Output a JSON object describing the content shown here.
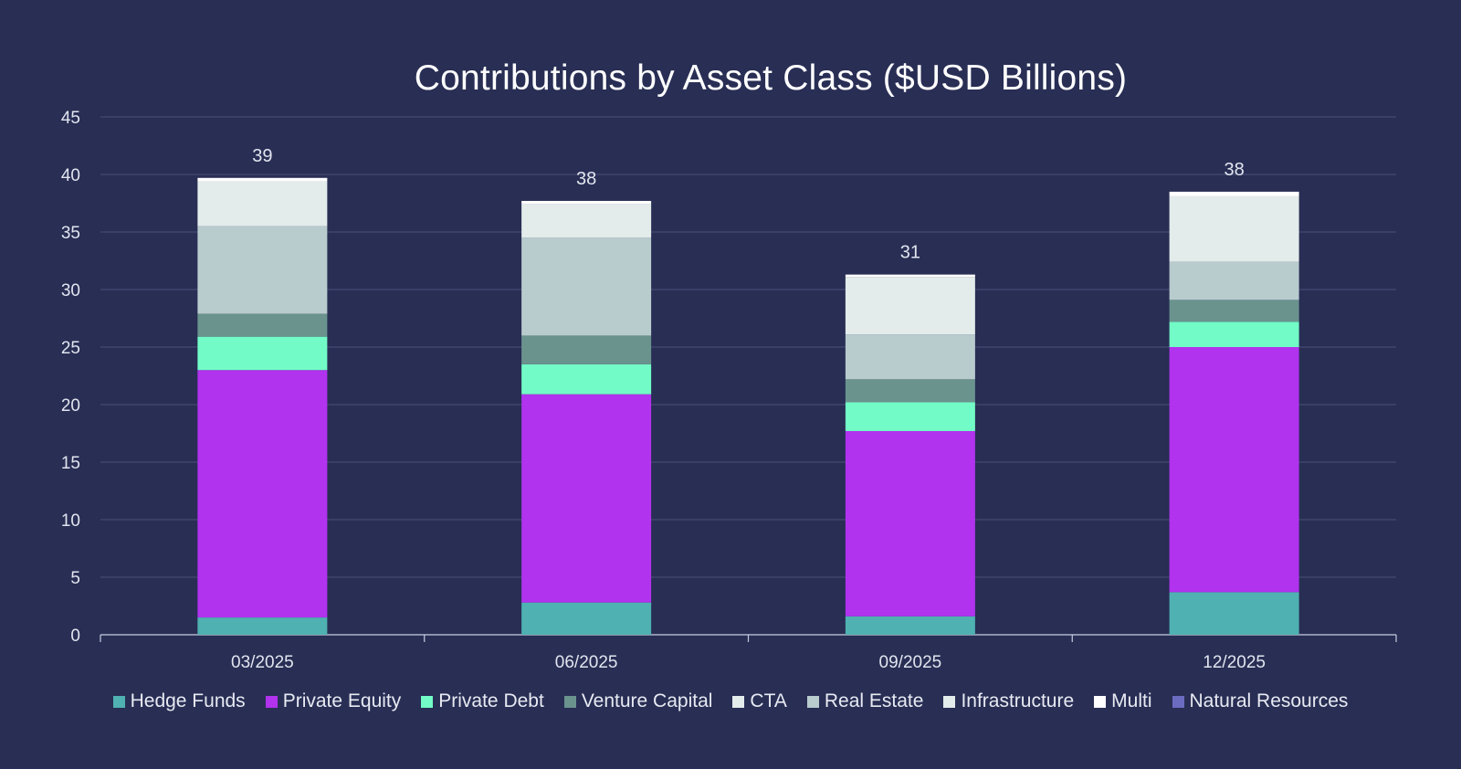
{
  "chart_data": {
    "type": "bar",
    "stacked": true,
    "title": "Contributions by Asset Class ($USD Billions)",
    "xlabel": "",
    "ylabel": "",
    "ylim": [
      0,
      45
    ],
    "yticks": [
      0,
      5,
      10,
      15,
      20,
      25,
      30,
      35,
      40,
      45
    ],
    "grid": true,
    "legend_position": "bottom",
    "categories": [
      "03/2025",
      "06/2025",
      "09/2025",
      "12/2025"
    ],
    "totals": [
      "39",
      "38",
      "31",
      "38"
    ],
    "series": [
      {
        "name": "Hedge Funds",
        "color": "#4fb1b1",
        "values": [
          1.5,
          2.8,
          1.6,
          3.7
        ]
      },
      {
        "name": "Private Equity",
        "color": "#b133ee",
        "values": [
          21.5,
          18.1,
          16.1,
          21.3
        ]
      },
      {
        "name": "Private Debt",
        "color": "#72fbc6",
        "values": [
          2.9,
          2.6,
          2.5,
          2.2
        ]
      },
      {
        "name": "Venture Capital",
        "color": "#6a938e",
        "values": [
          2.0,
          2.5,
          2.0,
          1.9
        ]
      },
      {
        "name": "CTA",
        "color": "#e4ebeb",
        "values": [
          0,
          0,
          0,
          0
        ]
      },
      {
        "name": "Real Estate",
        "color": "#b8cbcd",
        "values": [
          7.6,
          8.5,
          3.9,
          3.3
        ]
      },
      {
        "name": "Infrastructure",
        "color": "#e3ebeb",
        "values": [
          3.9,
          2.9,
          5.0,
          5.7
        ]
      },
      {
        "name": "Multi",
        "color": "#ffffff",
        "values": [
          0.3,
          0.3,
          0.2,
          0.4
        ]
      },
      {
        "name": "Natural Resources",
        "color": "#6b6cc0",
        "values": [
          0,
          0,
          0,
          0
        ]
      }
    ]
  }
}
